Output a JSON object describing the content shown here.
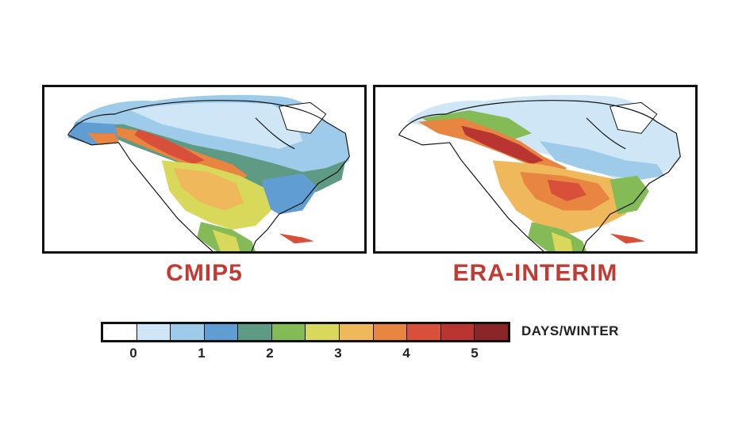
{
  "maps": [
    {
      "title": "CMIP5"
    },
    {
      "title": "ERA-INTERIM"
    }
  ],
  "colorbar": {
    "unit_label": "DAYS/WINTER",
    "colors": [
      "#ffffff",
      "#cfe6f6",
      "#9fcbeb",
      "#5f9dd2",
      "#5e9a84",
      "#84bb56",
      "#d8d85a",
      "#efb85a",
      "#e88540",
      "#d8503a",
      "#b83532",
      "#8a2528"
    ],
    "ticks": [
      "0",
      "1",
      "2",
      "3",
      "4",
      "5"
    ]
  }
}
